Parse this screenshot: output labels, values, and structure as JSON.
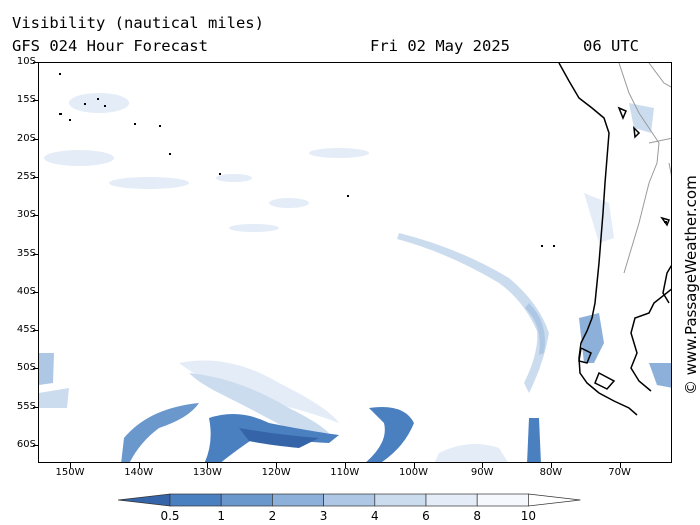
{
  "header": {
    "title": "Visibility (nautical miles)",
    "subtitle": "GFS 024 Hour Forecast",
    "date": "Fri 02 May 2025",
    "time": "06 UTC"
  },
  "map": {
    "latitude_labels": [
      "10S",
      "15S",
      "20S",
      "25S",
      "30S",
      "35S",
      "40S",
      "45S",
      "50S",
      "55S",
      "60S"
    ],
    "longitude_labels": [
      "150W",
      "140W",
      "130W",
      "120W",
      "110W",
      "100W",
      "90W",
      "80W",
      "70W"
    ],
    "background": "#ffffff",
    "land_outline": "#000000",
    "borders": "#9a9a9a"
  },
  "legend": {
    "values": [
      "0.5",
      "1",
      "2",
      "3",
      "4",
      "6",
      "8",
      "10"
    ],
    "colors": [
      "#3565a8",
      "#4a7fc0",
      "#6a97cc",
      "#8cb0d9",
      "#adc7e5",
      "#ccdcef",
      "#e3ecf7",
      "#f5f8fc",
      "#ffffff"
    ]
  },
  "credit": "© www.PassageWeather.com"
}
